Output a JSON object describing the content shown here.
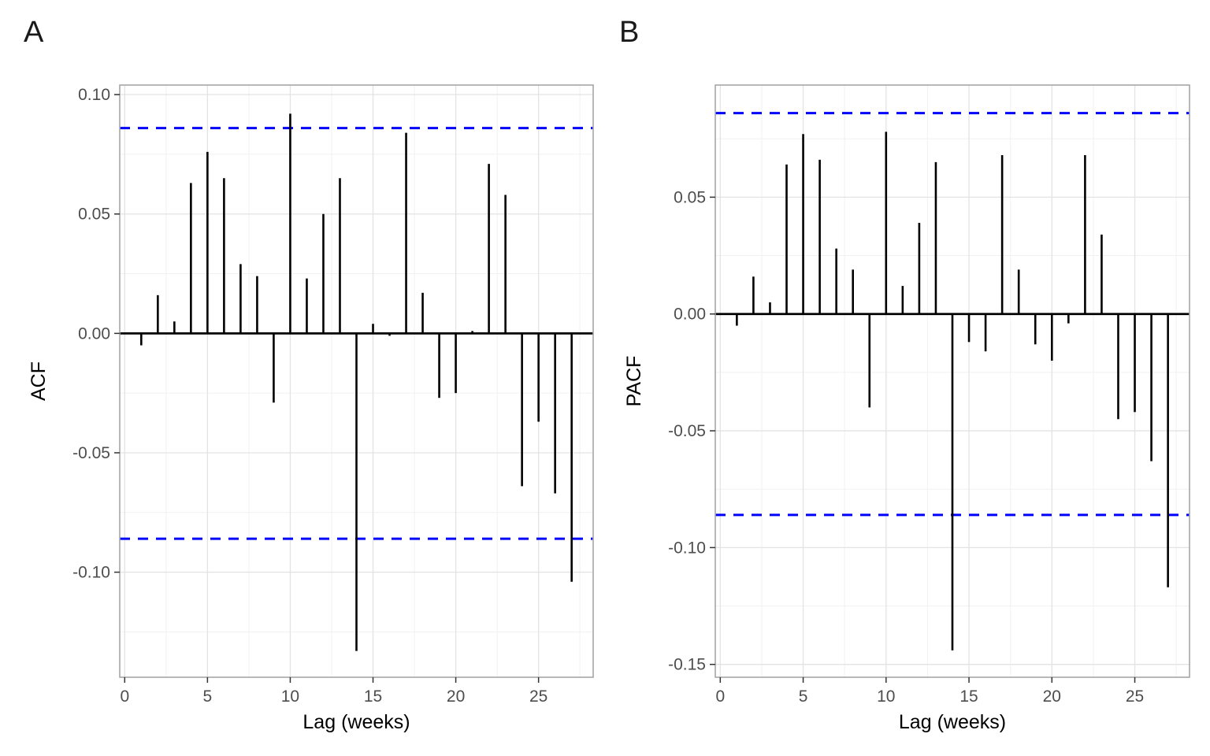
{
  "style": {
    "background": "#FFFFFF",
    "bar_color": "#000000",
    "zero_line_color": "#000000",
    "ci_color": "#0000FF",
    "panel_border_color": "#A6A6A6",
    "grid_major_color": "#E3E3E3",
    "grid_minor_color": "#F1F1F1",
    "tick_color": "#333333",
    "tick_label_color": "#4D4D4D",
    "axis_title_color": "#000000"
  },
  "chart_data": [
    {
      "type": "bar",
      "title": "A",
      "xlabel": "Lag (weeks)",
      "ylabel": "ACF",
      "x": [
        1,
        2,
        3,
        4,
        5,
        6,
        7,
        8,
        9,
        10,
        11,
        12,
        13,
        14,
        15,
        16,
        17,
        18,
        19,
        20,
        21,
        22,
        23,
        24,
        25,
        26,
        27
      ],
      "values": [
        -0.005,
        0.016,
        0.005,
        0.063,
        0.076,
        0.065,
        0.029,
        0.024,
        -0.029,
        0.092,
        0.023,
        0.05,
        0.065,
        -0.133,
        0.004,
        -0.001,
        0.084,
        0.017,
        -0.027,
        -0.025,
        0.001,
        0.071,
        0.058,
        -0.064,
        -0.037,
        -0.067,
        -0.104
      ],
      "confidence_bounds": {
        "upper": 0.086,
        "lower": -0.086,
        "style": "dashed"
      },
      "xlim": [
        -0.3,
        28.3
      ],
      "ylim": [
        -0.144,
        0.104
      ],
      "xticks": {
        "values": [
          0,
          5,
          10,
          15,
          20,
          25
        ],
        "labels": [
          "0",
          "5",
          "10",
          "15",
          "20",
          "25"
        ]
      },
      "yticks": {
        "values": [
          0.1,
          0.05,
          0.0,
          -0.05,
          -0.1
        ],
        "labels": [
          "0.10",
          "0.05",
          "0.00",
          "-0.05",
          "-0.10"
        ]
      },
      "grid": {
        "major": true,
        "minor": true
      },
      "legend": "none"
    },
    {
      "type": "bar",
      "title": "B",
      "xlabel": "Lag (weeks)",
      "ylabel": "PACF",
      "x": [
        1,
        2,
        3,
        4,
        5,
        6,
        7,
        8,
        9,
        10,
        11,
        12,
        13,
        14,
        15,
        16,
        17,
        18,
        19,
        20,
        21,
        22,
        23,
        24,
        25,
        26,
        27
      ],
      "values": [
        -0.005,
        0.016,
        0.005,
        0.064,
        0.077,
        0.066,
        0.028,
        0.019,
        -0.04,
        0.078,
        0.012,
        0.039,
        0.065,
        -0.144,
        -0.012,
        -0.016,
        0.068,
        0.019,
        -0.013,
        -0.02,
        -0.004,
        0.068,
        0.034,
        -0.045,
        -0.042,
        -0.063,
        -0.117
      ],
      "confidence_bounds": {
        "upper": 0.086,
        "lower": -0.086,
        "style": "dashed"
      },
      "xlim": [
        -0.3,
        28.3
      ],
      "ylim": [
        -0.1555,
        0.098
      ],
      "xticks": {
        "values": [
          0,
          5,
          10,
          15,
          20,
          25
        ],
        "labels": [
          "0",
          "5",
          "10",
          "15",
          "20",
          "25"
        ]
      },
      "yticks": {
        "values": [
          0.05,
          0.0,
          -0.05,
          -0.1,
          -0.15
        ],
        "labels": [
          "0.05",
          "0.00",
          "-0.05",
          "-0.10",
          "-0.15"
        ]
      },
      "grid": {
        "major": true,
        "minor": true
      },
      "legend": "none"
    }
  ]
}
